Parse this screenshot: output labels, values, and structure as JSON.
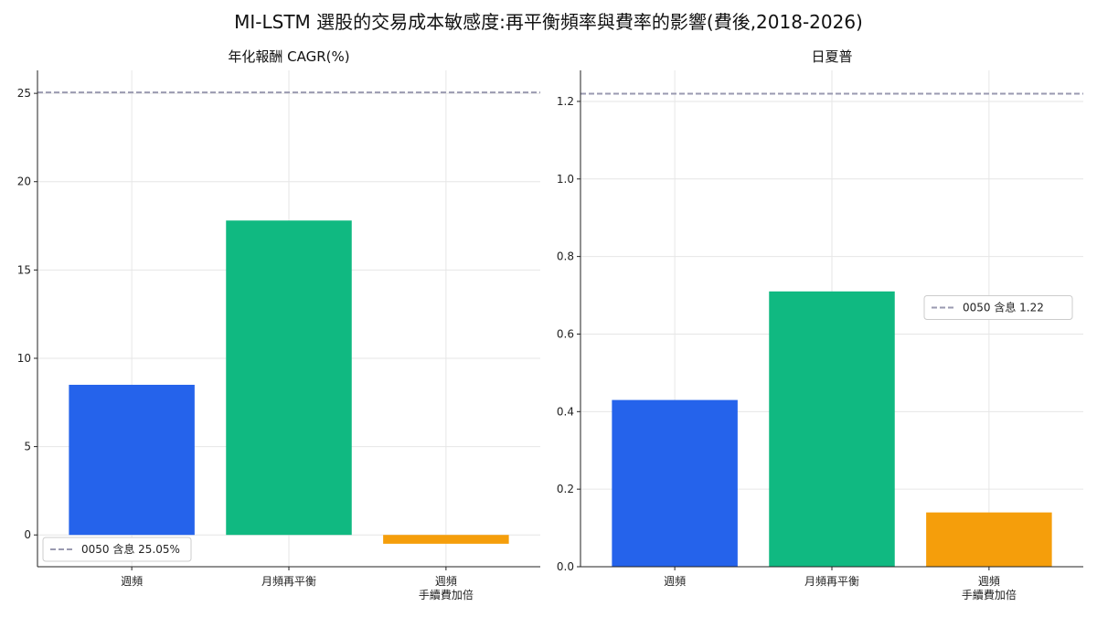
{
  "title": "MI-LSTM 選股的交易成本敏感度:再平衡頻率與費率的影響(費後,2018-2026)",
  "colors": {
    "weekly": "#2563eb",
    "monthly": "#10b981",
    "weekly_double_fee": "#f59e0b",
    "reference": "#9a9ab0"
  },
  "chart_data": [
    {
      "type": "bar",
      "title": "年化報酬 CAGR(%)",
      "categories": [
        [
          "週頻"
        ],
        [
          "月頻再平衡"
        ],
        [
          "週頻",
          "手續費加倍"
        ]
      ],
      "values": [
        8.5,
        17.8,
        -0.5
      ],
      "ylim": [
        -1.8,
        26.3
      ],
      "yticks": [
        0,
        5,
        10,
        15,
        20,
        25
      ],
      "tick_decimals": 0,
      "reference_line": {
        "value": 25.05,
        "label": "0050 含息 25.05%"
      },
      "legend_position": "lower-left",
      "grid": true
    },
    {
      "type": "bar",
      "title": "日夏普",
      "categories": [
        [
          "週頻"
        ],
        [
          "月頻再平衡"
        ],
        [
          "週頻",
          "手續費加倍"
        ]
      ],
      "values": [
        0.43,
        0.71,
        0.14
      ],
      "ylim": [
        0,
        1.28
      ],
      "yticks": [
        0.0,
        0.2,
        0.4,
        0.6,
        0.8,
        1.0,
        1.2
      ],
      "tick_decimals": 1,
      "reference_line": {
        "value": 1.22,
        "label": "0050 含息 1.22"
      },
      "legend_position": "center-right",
      "grid": true
    }
  ]
}
